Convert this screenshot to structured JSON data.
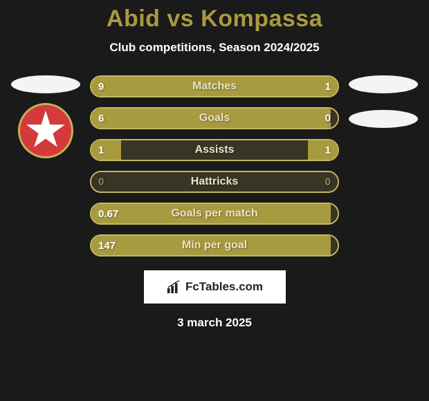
{
  "colors": {
    "background": "#1a1a1a",
    "accent": "#a89a3f",
    "bar_fill": "#a89a3f",
    "bar_empty": "#373524",
    "bar_border": "#c6b960",
    "text_on_fill": "#ffffff",
    "text_on_empty": "#8f8454",
    "label_color": "#e8e4c8"
  },
  "title": "Abid vs Kompassa",
  "subtitle": "Club competitions, Season 2024/2025",
  "date": "3 march 2025",
  "logo_text": "FcTables.com",
  "left_player": {
    "has_flag": true,
    "has_badge": true
  },
  "right_player": {
    "has_flag": true,
    "has_badge": false
  },
  "bars": [
    {
      "label": "Matches",
      "left_value": "9",
      "right_value": "1",
      "left_pct": 75,
      "right_pct": 25,
      "left_filled": true,
      "right_filled": true
    },
    {
      "label": "Goals",
      "left_value": "6",
      "right_value": "0",
      "left_pct": 100,
      "right_pct": 0,
      "left_filled": true,
      "right_filled": false
    },
    {
      "label": "Assists",
      "left_value": "1",
      "right_value": "1",
      "left_pct": 12,
      "right_pct": 12,
      "left_filled": true,
      "right_filled": true,
      "middle_empty": true
    },
    {
      "label": "Hattricks",
      "left_value": "0",
      "right_value": "0",
      "left_pct": 0,
      "right_pct": 0,
      "left_filled": false,
      "right_filled": false
    },
    {
      "label": "Goals per match",
      "left_value": "0.67",
      "right_value": "",
      "left_pct": 100,
      "right_pct": 0,
      "left_filled": true,
      "right_filled": false
    },
    {
      "label": "Min per goal",
      "left_value": "147",
      "right_value": "",
      "left_pct": 100,
      "right_pct": 0,
      "left_filled": true,
      "right_filled": false
    }
  ]
}
